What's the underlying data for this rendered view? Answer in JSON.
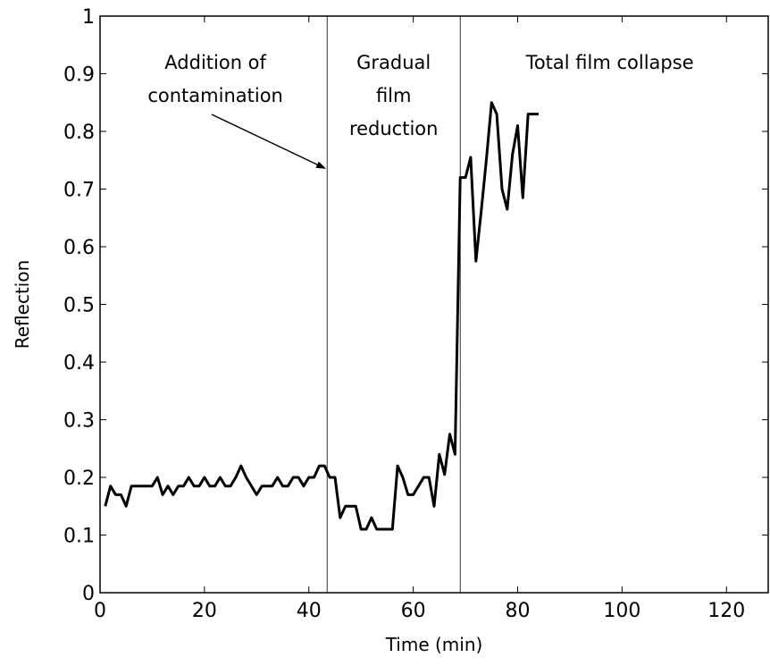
{
  "chart_data": {
    "type": "line",
    "title": "",
    "xlabel": "Time (min)",
    "ylabel": "Reflection",
    "xlim": [
      0,
      128
    ],
    "ylim": [
      0,
      1
    ],
    "xticks": [
      0,
      20,
      40,
      60,
      80,
      100,
      120
    ],
    "yticks": [
      0,
      0.1,
      0.2,
      0.3,
      0.4,
      0.5,
      0.6,
      0.7,
      0.8,
      0.9,
      1
    ],
    "grid": false,
    "legend": "none",
    "line_color": "#000000",
    "phase_boundaries": [
      43.5,
      69
    ],
    "annotations": [
      {
        "lines": [
          "Addition of",
          "contamination"
        ],
        "arrow_to": {
          "x": 43.3,
          "y": 0.735
        }
      },
      {
        "lines": [
          "Gradual",
          "film",
          "reduction"
        ]
      },
      {
        "lines": [
          "Total film collapse"
        ]
      }
    ],
    "series": [
      {
        "x": [
          1,
          2,
          3,
          4,
          5,
          6,
          7,
          8,
          9,
          10,
          11,
          12,
          13,
          14,
          15,
          16,
          17,
          18,
          19,
          20,
          21,
          22,
          23,
          24,
          25,
          26,
          27,
          28,
          29,
          30,
          31,
          32,
          33,
          34,
          35,
          36,
          37,
          38,
          39,
          40,
          41,
          42,
          43,
          44,
          45,
          46,
          47,
          48,
          49,
          50,
          51,
          52,
          53,
          54,
          55,
          56,
          57,
          58,
          59,
          60,
          61,
          62,
          63,
          64,
          65,
          66,
          67,
          68,
          69,
          70,
          71,
          72,
          73,
          74,
          75,
          76,
          77,
          78,
          79,
          80,
          81,
          82,
          83,
          84
        ],
        "y": [
          0.15,
          0.185,
          0.17,
          0.17,
          0.15,
          0.185,
          0.185,
          0.185,
          0.185,
          0.185,
          0.2,
          0.17,
          0.185,
          0.17,
          0.185,
          0.185,
          0.2,
          0.185,
          0.185,
          0.2,
          0.185,
          0.185,
          0.2,
          0.185,
          0.185,
          0.2,
          0.22,
          0.2,
          0.185,
          0.17,
          0.185,
          0.185,
          0.185,
          0.2,
          0.185,
          0.185,
          0.2,
          0.2,
          0.185,
          0.2,
          0.2,
          0.22,
          0.22,
          0.2,
          0.2,
          0.13,
          0.15,
          0.15,
          0.15,
          0.11,
          0.11,
          0.13,
          0.11,
          0.11,
          0.11,
          0.11,
          0.22,
          0.2,
          0.17,
          0.17,
          0.185,
          0.2,
          0.2,
          0.15,
          0.24,
          0.205,
          0.275,
          0.24,
          0.72,
          0.72,
          0.755,
          0.575,
          0.66,
          0.75,
          0.85,
          0.83,
          0.7,
          0.665,
          0.76,
          0.81,
          0.685,
          0.83,
          0.83,
          0.83
        ]
      }
    ]
  }
}
